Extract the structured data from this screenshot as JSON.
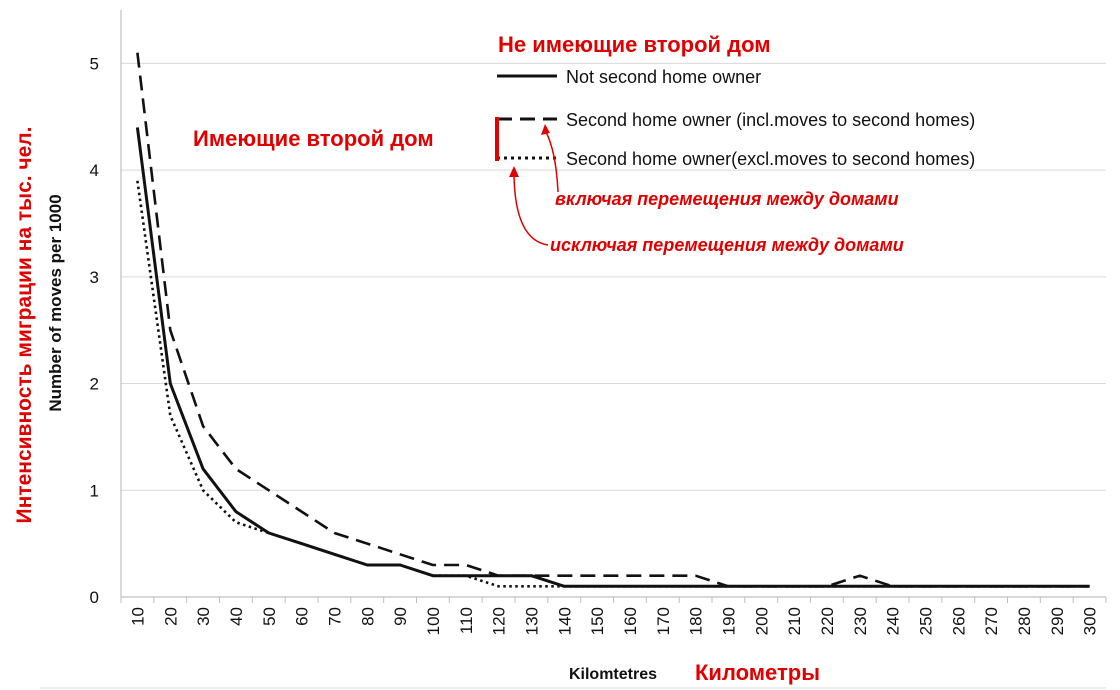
{
  "chart_data": {
    "type": "line",
    "xlabel": "Kilomtetres",
    "xlabel_ru": "Километры",
    "ylabel": "Number of moves per 1000",
    "ylabel_ru": "Интенсивность миграции на тыс. чел.",
    "x": [
      10,
      20,
      30,
      40,
      50,
      60,
      70,
      80,
      90,
      100,
      110,
      120,
      130,
      140,
      150,
      160,
      170,
      180,
      190,
      200,
      210,
      220,
      230,
      240,
      250,
      260,
      270,
      280,
      290,
      300
    ],
    "ylim": [
      0,
      5.5
    ],
    "yticks": [
      0,
      1,
      2,
      3,
      4,
      5
    ],
    "grid": true,
    "legend_position": "top-right",
    "series": [
      {
        "name": "Not second home owner",
        "style": "solid",
        "values": [
          4.4,
          2.0,
          1.2,
          0.8,
          0.6,
          0.5,
          0.4,
          0.3,
          0.3,
          0.2,
          0.2,
          0.2,
          0.2,
          0.1,
          0.1,
          0.1,
          0.1,
          0.1,
          0.1,
          0.1,
          0.1,
          0.1,
          0.1,
          0.1,
          0.1,
          0.1,
          0.1,
          0.1,
          0.1,
          0.1
        ]
      },
      {
        "name": "Second home owner (incl.moves to second homes)",
        "style": "dashed",
        "values": [
          5.1,
          2.5,
          1.6,
          1.2,
          1.0,
          0.8,
          0.6,
          0.5,
          0.4,
          0.3,
          0.3,
          0.2,
          0.2,
          0.2,
          0.2,
          0.2,
          0.2,
          0.2,
          0.1,
          0.1,
          0.1,
          0.1,
          0.2,
          0.1,
          0.1,
          0.1,
          0.1,
          0.1,
          0.1,
          0.1
        ]
      },
      {
        "name": "Second home owner(excl.moves to second homes)",
        "style": "dotted",
        "values": [
          3.9,
          1.7,
          1.0,
          0.7,
          0.6,
          0.5,
          0.4,
          0.3,
          0.3,
          0.2,
          0.2,
          0.1,
          0.1,
          0.1,
          0.1,
          0.1,
          0.1,
          0.1,
          0.1,
          0.1,
          0.1,
          0.1,
          0.1,
          0.1,
          0.1,
          0.1,
          0.1,
          0.1,
          0.1,
          0.1
        ]
      }
    ],
    "annotations": {
      "not_second_home_ru": "Не имеющие второй дом",
      "second_home_ru": "Имеющие второй дом",
      "incl_ru": "включая перемещения между домами",
      "excl_ru": "исключая перемещения между домами"
    }
  },
  "colors": {
    "line": "#111111",
    "annotation": "#e10000",
    "grid": "#d9d9d9",
    "axis": "#bfbfbf"
  }
}
